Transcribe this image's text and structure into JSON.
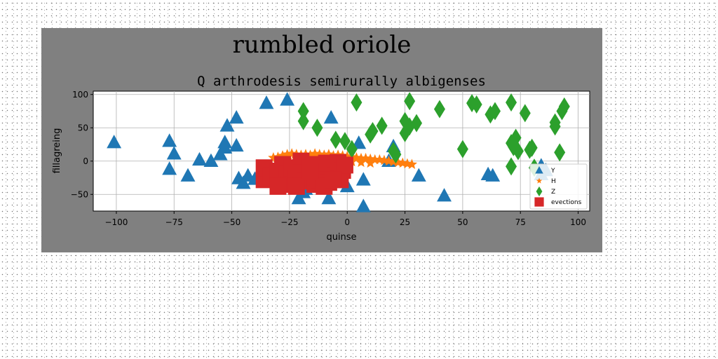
{
  "figure": {
    "suptitle": "rumbled oriole",
    "background_color": "#808080"
  },
  "chart_data": {
    "type": "scatter",
    "title": "Q arthrodesis semirurally albigenses",
    "xlabel": "quinse",
    "ylabel": "fillagreing",
    "xlim": [
      -110,
      105
    ],
    "ylim": [
      -75,
      105
    ],
    "xticks": [
      -100,
      -75,
      -50,
      -25,
      0,
      25,
      50,
      75,
      100
    ],
    "yticks": [
      -50,
      0,
      50,
      100
    ],
    "grid": true,
    "legend": "bottom-right",
    "series": [
      {
        "name": "Y",
        "marker": "triangle",
        "color": "#1f77b4",
        "points": [
          [
            -101,
            28
          ],
          [
            -77,
            30
          ],
          [
            -75,
            11
          ],
          [
            -77,
            -12
          ],
          [
            -69,
            -22
          ],
          [
            -64,
            2
          ],
          [
            -59,
            0
          ],
          [
            -55,
            10
          ],
          [
            -53,
            20
          ],
          [
            -53,
            28
          ],
          [
            -52,
            53
          ],
          [
            -48,
            65
          ],
          [
            -48,
            23
          ],
          [
            -47,
            -26
          ],
          [
            -45,
            -33
          ],
          [
            -43,
            -22
          ],
          [
            -40,
            -27
          ],
          [
            -35,
            87
          ],
          [
            -31,
            -20
          ],
          [
            -26,
            92
          ],
          [
            -25,
            -28
          ],
          [
            -21,
            -56
          ],
          [
            -19,
            -47
          ],
          [
            -18,
            -42
          ],
          [
            -14,
            -28
          ],
          [
            -8,
            -56
          ],
          [
            -7,
            65
          ],
          [
            0,
            -38
          ],
          [
            5,
            27
          ],
          [
            7,
            -68
          ],
          [
            7,
            -28
          ],
          [
            20,
            22
          ],
          [
            18,
            0
          ],
          [
            31,
            -22
          ],
          [
            42,
            -52
          ],
          [
            61,
            -20
          ],
          [
            63,
            -22
          ],
          [
            84,
            -20
          ],
          [
            86,
            -14
          ],
          [
            84,
            -7
          ]
        ]
      },
      {
        "name": "H",
        "marker": "star",
        "color": "#ff7f0e",
        "points": [
          [
            -32,
            5
          ],
          [
            -30,
            6
          ],
          [
            -28,
            8
          ],
          [
            -26,
            10
          ],
          [
            -24,
            11
          ],
          [
            -22,
            10
          ],
          [
            -20,
            9
          ],
          [
            -18,
            10
          ],
          [
            -16,
            9
          ],
          [
            -14,
            11
          ],
          [
            -12,
            10
          ],
          [
            -10,
            9
          ],
          [
            -8,
            10
          ],
          [
            -6,
            8
          ],
          [
            -4,
            9
          ],
          [
            -2,
            8
          ],
          [
            0,
            7
          ],
          [
            2,
            6
          ],
          [
            4,
            5
          ],
          [
            6,
            4
          ],
          [
            8,
            4
          ],
          [
            10,
            3
          ],
          [
            12,
            2
          ],
          [
            14,
            2
          ],
          [
            16,
            1
          ],
          [
            18,
            0
          ],
          [
            20,
            -1
          ],
          [
            22,
            -2
          ],
          [
            24,
            -3
          ],
          [
            26,
            -4
          ],
          [
            28,
            -5
          ],
          [
            -30,
            -2
          ],
          [
            -26,
            2
          ],
          [
            -22,
            4
          ],
          [
            -18,
            3
          ],
          [
            -14,
            2
          ],
          [
            -10,
            4
          ],
          [
            -6,
            2
          ],
          [
            -2,
            0
          ],
          [
            2,
            -1
          ],
          [
            6,
            -2
          ],
          [
            10,
            -3
          ]
        ]
      },
      {
        "name": "Z",
        "marker": "diamond",
        "color": "#2ca02c",
        "points": [
          [
            -19,
            75
          ],
          [
            -19,
            60
          ],
          [
            -13,
            50
          ],
          [
            -5,
            32
          ],
          [
            -1,
            30
          ],
          [
            2,
            18
          ],
          [
            4,
            88
          ],
          [
            10,
            40
          ],
          [
            11,
            45
          ],
          [
            15,
            53
          ],
          [
            20,
            15
          ],
          [
            21,
            10
          ],
          [
            25,
            60
          ],
          [
            25,
            42
          ],
          [
            27,
            90
          ],
          [
            27,
            52
          ],
          [
            30,
            57
          ],
          [
            40,
            78
          ],
          [
            50,
            18
          ],
          [
            54,
            87
          ],
          [
            56,
            85
          ],
          [
            62,
            70
          ],
          [
            64,
            75
          ],
          [
            71,
            88
          ],
          [
            71,
            27
          ],
          [
            71,
            -8
          ],
          [
            72,
            21
          ],
          [
            73,
            35
          ],
          [
            74,
            15
          ],
          [
            77,
            72
          ],
          [
            79,
            17
          ],
          [
            80,
            20
          ],
          [
            81,
            -10
          ],
          [
            90,
            58
          ],
          [
            90,
            52
          ],
          [
            92,
            13
          ],
          [
            93,
            75
          ],
          [
            94,
            82
          ]
        ]
      },
      {
        "name": "evections",
        "marker": "square",
        "color": "#d62728",
        "points": [
          [
            -36,
            -28
          ],
          [
            -36,
            -10
          ],
          [
            -33,
            -22
          ],
          [
            -30,
            -15
          ],
          [
            -28,
            -30
          ],
          [
            -28,
            -5
          ],
          [
            -26,
            -20
          ],
          [
            -25,
            -35
          ],
          [
            -24,
            -10
          ],
          [
            -22,
            -25
          ],
          [
            -20,
            0
          ],
          [
            -20,
            -18
          ],
          [
            -18,
            -30
          ],
          [
            -16,
            -5
          ],
          [
            -15,
            -22
          ],
          [
            -14,
            -35
          ],
          [
            -12,
            -12
          ],
          [
            -12,
            -28
          ],
          [
            -10,
            -18
          ],
          [
            -9,
            -3
          ],
          [
            -8,
            -32
          ],
          [
            -6,
            -10
          ],
          [
            -5,
            -22
          ],
          [
            -4,
            -2
          ],
          [
            -3,
            -28
          ],
          [
            -2,
            -14
          ],
          [
            -1,
            -6
          ],
          [
            -30,
            -38
          ],
          [
            -22,
            -38
          ],
          [
            -10,
            -38
          ],
          [
            -16,
            -15
          ],
          [
            -6,
            -28
          ]
        ]
      }
    ]
  }
}
